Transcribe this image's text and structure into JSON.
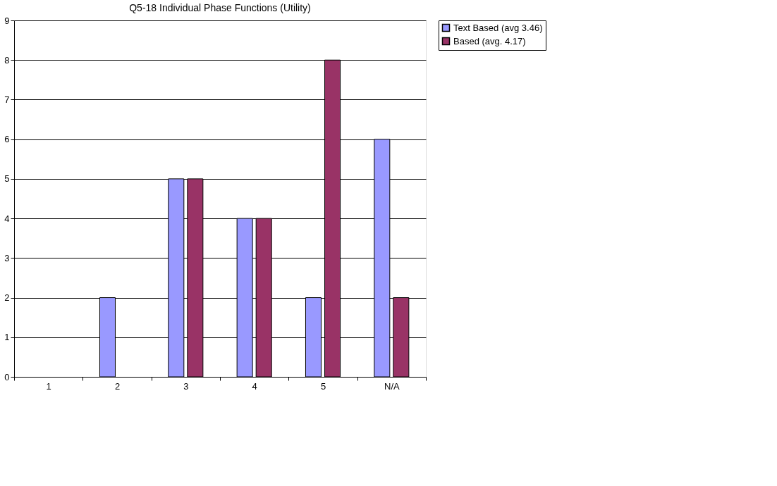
{
  "chart_data": {
    "type": "bar",
    "title": "Q5-18 Individual Phase Functions (Utility)",
    "categories": [
      "1",
      "2",
      "3",
      "4",
      "5",
      "N/A"
    ],
    "series": [
      {
        "name": "Text Based (avg 3.46)",
        "color": "#9999ff",
        "values": [
          0,
          2,
          5,
          4,
          2,
          6
        ]
      },
      {
        "name": "Based (avg. 4.17)",
        "color": "#993366",
        "values": [
          0,
          0,
          5,
          4,
          8,
          2
        ]
      }
    ],
    "ylim": [
      0,
      9
    ],
    "yticks": [
      0,
      1,
      2,
      3,
      4,
      5,
      6,
      7,
      8,
      9
    ],
    "grid": "y",
    "legend": "right"
  }
}
